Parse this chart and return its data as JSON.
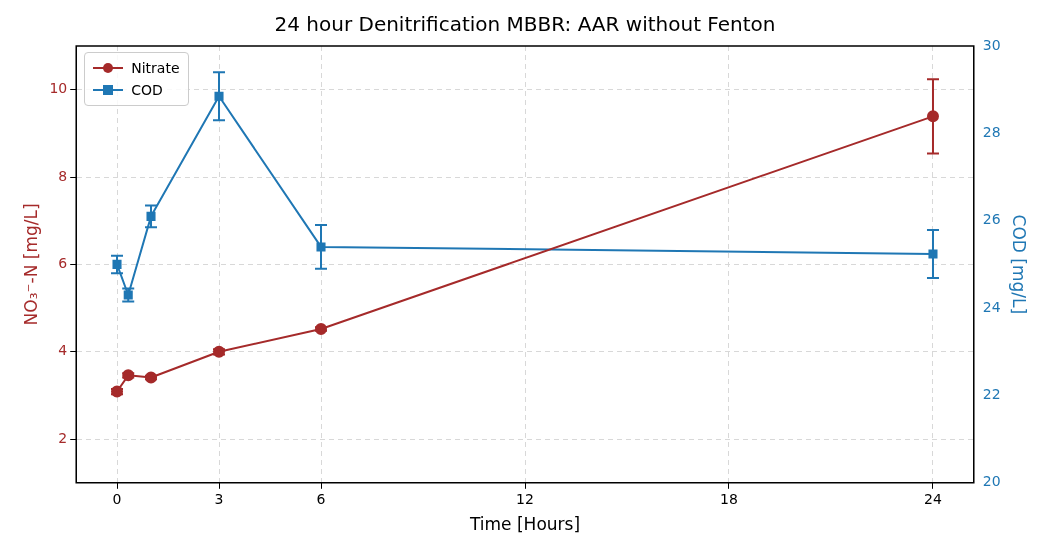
{
  "chart_data": {
    "type": "line",
    "title": "24 hour Denitrification MBBR: AAR without Fenton",
    "xlabel": "Time [Hours]",
    "ylabel": "NO₃⁻-N [mg/L]",
    "y2label": "COD [mg/L]",
    "x": [
      0,
      0.33,
      1,
      3,
      6,
      24
    ],
    "series": [
      {
        "name": "Nitrate",
        "color": "#a52a2a",
        "marker": "circle",
        "values": [
          3.09,
          3.46,
          3.41,
          4.0,
          4.52,
          9.39
        ],
        "errors": [
          0.06,
          0.05,
          0.04,
          0.06,
          0.04,
          0.85
        ]
      },
      {
        "name": "COD",
        "color": "#1f77b4",
        "marker": "square",
        "axis": "y2",
        "values": [
          25.0,
          24.3,
          26.1,
          28.85,
          25.4,
          25.24
        ],
        "errors": [
          0.2,
          0.15,
          0.25,
          0.55,
          0.5,
          0.55
        ]
      }
    ],
    "xlim": [
      -1.2,
      25.2
    ],
    "xticks": [
      0,
      3,
      6,
      12,
      18,
      24
    ],
    "ylim": [
      1,
      11
    ],
    "yticks": [
      2,
      4,
      6,
      8,
      10
    ],
    "y2lim": [
      20,
      30
    ],
    "y2ticks": [
      20,
      22,
      24,
      26,
      28,
      30
    ],
    "grid": true,
    "legend": "top left",
    "line_style": "solid"
  }
}
